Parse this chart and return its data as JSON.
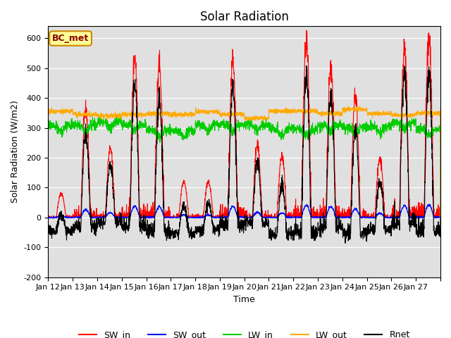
{
  "title": "Solar Radiation",
  "xlabel": "Time",
  "ylabel": "Solar Radiation (W/m2)",
  "ylim": [
    -200,
    640
  ],
  "yticks": [
    -200,
    -100,
    0,
    100,
    200,
    300,
    400,
    500,
    600
  ],
  "n_days": 16,
  "xtick_positions": [
    0,
    1,
    2,
    3,
    4,
    5,
    6,
    7,
    8,
    9,
    10,
    11,
    12,
    13,
    14,
    15,
    16
  ],
  "xtick_labels": [
    "Jan 12",
    "Jan 13",
    "Jan 14",
    "Jan 15",
    "Jan 16",
    "Jan 17",
    "Jan 18",
    "Jan 19",
    "Jan 20",
    "Jan 21",
    "Jan 22",
    "Jan 23",
    "Jan 24",
    "Jan 25",
    "Jan 26",
    "Jan 27",
    ""
  ],
  "sw_in_peaks": [
    80,
    360,
    230,
    540,
    510,
    120,
    120,
    520,
    240,
    205,
    590,
    500,
    410,
    195,
    570,
    600
  ],
  "colors": {
    "SW_in": "#ff0000",
    "SW_out": "#0000ff",
    "LW_in": "#00cc00",
    "LW_out": "#ffaa00",
    "Rnet": "#000000"
  },
  "annotation_text": "BC_met",
  "annotation_bg": "#ffff99",
  "annotation_border": "#cc8800",
  "bg_color": "#e0e0e0"
}
